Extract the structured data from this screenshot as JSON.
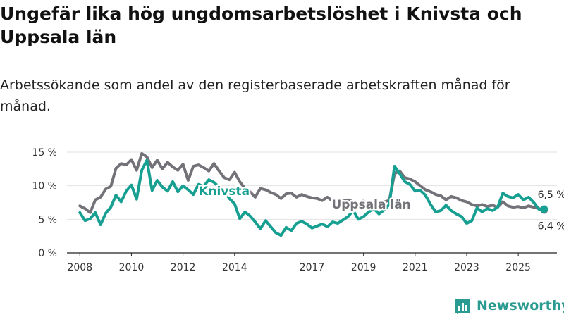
{
  "title": "Ungefär lika hög ungdomsarbetslöshet i Knivsta och Uppsala län",
  "subtitle": "Arbetssökande som andel av den registerbaserade arbetskraften månad för månad.",
  "brand": {
    "name": "Newsworthy",
    "color": "#2a9b91"
  },
  "chart_data": {
    "type": "line",
    "xlim": [
      2007.5,
      2026.5
    ],
    "ylim": [
      0,
      15
    ],
    "x_ticks": [
      2008,
      2010,
      2012,
      2014,
      2017,
      2019,
      2021,
      2023,
      2025
    ],
    "y_ticks": [
      {
        "value": 0,
        "label": "0 %"
      },
      {
        "value": 5,
        "label": "5 %"
      },
      {
        "value": 10,
        "label": "10 %"
      },
      {
        "value": 15,
        "label": "15 %"
      }
    ],
    "grid": true,
    "series": [
      {
        "name": "Uppsala län",
        "color": "#737278",
        "end_value_label": "6,4 %",
        "x": [
          2008.0,
          2008.2,
          2008.4,
          2008.6,
          2008.8,
          2009.0,
          2009.2,
          2009.4,
          2009.6,
          2009.8,
          2010.0,
          2010.2,
          2010.4,
          2010.6,
          2010.8,
          2011.0,
          2011.2,
          2011.4,
          2011.6,
          2011.8,
          2012.0,
          2012.2,
          2012.4,
          2012.6,
          2012.8,
          2013.0,
          2013.2,
          2013.4,
          2013.6,
          2013.8,
          2014.0,
          2014.2,
          2014.4,
          2014.6,
          2014.8,
          2015.0,
          2015.2,
          2015.4,
          2015.6,
          2015.8,
          2016.0,
          2016.2,
          2016.4,
          2016.6,
          2016.8,
          2017.0,
          2017.2,
          2017.4,
          2017.6,
          2017.8,
          2018.0,
          2018.2,
          2018.4,
          2018.6,
          2018.8,
          2019.0,
          2019.2,
          2019.4,
          2019.6,
          2019.8,
          2020.0,
          2020.2,
          2020.4,
          2020.6,
          2020.8,
          2021.0,
          2021.2,
          2021.4,
          2021.6,
          2021.8,
          2022.0,
          2022.2,
          2022.4,
          2022.6,
          2022.8,
          2023.0,
          2023.2,
          2023.4,
          2023.6,
          2023.8,
          2024.0,
          2024.2,
          2024.4,
          2024.6,
          2024.8,
          2025.0,
          2025.2,
          2025.4,
          2025.6,
          2025.8,
          2026.0
        ],
        "values": [
          7.0,
          6.6,
          6.0,
          7.9,
          8.3,
          9.5,
          9.9,
          12.6,
          13.3,
          13.1,
          13.9,
          12.3,
          14.8,
          14.3,
          12.7,
          13.8,
          12.5,
          13.5,
          12.8,
          12.3,
          13.2,
          10.8,
          12.9,
          13.1,
          12.7,
          12.2,
          13.3,
          12.2,
          11.2,
          10.9,
          12.0,
          10.6,
          9.6,
          9.1,
          8.3,
          9.6,
          9.4,
          9.0,
          8.7,
          8.1,
          8.8,
          8.9,
          8.3,
          8.7,
          8.4,
          8.2,
          8.1,
          7.8,
          8.3,
          7.7,
          7.6,
          7.7,
          7.9,
          7.6,
          7.5,
          7.7,
          7.3,
          7.5,
          7.4,
          7.6,
          7.8,
          11.8,
          12.2,
          11.2,
          11.0,
          10.6,
          10.0,
          9.4,
          9.1,
          8.7,
          8.5,
          7.9,
          8.4,
          8.2,
          7.8,
          7.6,
          7.2,
          7.0,
          7.2,
          6.9,
          7.1,
          6.8,
          7.6,
          7.0,
          6.8,
          6.9,
          6.7,
          7.0,
          6.8,
          6.6,
          6.4
        ]
      },
      {
        "name": "Knivsta",
        "color": "#17a092",
        "end_value_label": "6,5 %",
        "x": [
          2008.0,
          2008.2,
          2008.4,
          2008.6,
          2008.8,
          2009.0,
          2009.2,
          2009.4,
          2009.6,
          2009.8,
          2010.0,
          2010.2,
          2010.4,
          2010.6,
          2010.8,
          2011.0,
          2011.2,
          2011.4,
          2011.6,
          2011.8,
          2012.0,
          2012.2,
          2012.4,
          2012.6,
          2012.8,
          2013.0,
          2013.2,
          2013.4,
          2013.6,
          2013.8,
          2014.0,
          2014.2,
          2014.4,
          2014.6,
          2014.8,
          2015.0,
          2015.2,
          2015.4,
          2015.6,
          2015.8,
          2016.0,
          2016.2,
          2016.4,
          2016.6,
          2016.8,
          2017.0,
          2017.2,
          2017.4,
          2017.6,
          2017.8,
          2018.0,
          2018.2,
          2018.4,
          2018.6,
          2018.8,
          2019.0,
          2019.2,
          2019.4,
          2019.6,
          2019.8,
          2020.0,
          2020.2,
          2020.4,
          2020.6,
          2020.8,
          2021.0,
          2021.2,
          2021.4,
          2021.6,
          2021.8,
          2022.0,
          2022.2,
          2022.4,
          2022.6,
          2022.8,
          2023.0,
          2023.2,
          2023.4,
          2023.6,
          2023.8,
          2024.0,
          2024.2,
          2024.4,
          2024.6,
          2024.8,
          2025.0,
          2025.2,
          2025.4,
          2025.6,
          2025.8,
          2026.0
        ],
        "values": [
          6.0,
          4.8,
          5.1,
          6.0,
          4.2,
          5.9,
          6.8,
          8.6,
          7.6,
          9.2,
          10.1,
          8.0,
          12.3,
          13.8,
          9.3,
          10.8,
          9.8,
          9.2,
          10.6,
          9.1,
          10.0,
          9.4,
          8.7,
          10.2,
          9.9,
          10.9,
          10.5,
          9.8,
          9.1,
          8.1,
          7.3,
          5.1,
          6.1,
          5.5,
          4.6,
          3.6,
          4.8,
          3.9,
          3.0,
          2.6,
          3.8,
          3.3,
          4.4,
          4.7,
          4.3,
          3.7,
          4.0,
          4.3,
          3.9,
          4.6,
          4.4,
          4.9,
          5.4,
          6.3,
          5.0,
          5.4,
          6.1,
          6.6,
          5.8,
          6.4,
          7.2,
          12.9,
          11.8,
          10.6,
          10.2,
          9.2,
          9.3,
          8.6,
          7.2,
          6.1,
          6.3,
          7.1,
          6.3,
          5.8,
          5.4,
          4.4,
          4.8,
          6.7,
          6.1,
          6.6,
          6.3,
          6.8,
          8.9,
          8.4,
          8.2,
          8.7,
          7.9,
          8.3,
          7.5,
          6.5,
          6.5
        ]
      }
    ]
  }
}
